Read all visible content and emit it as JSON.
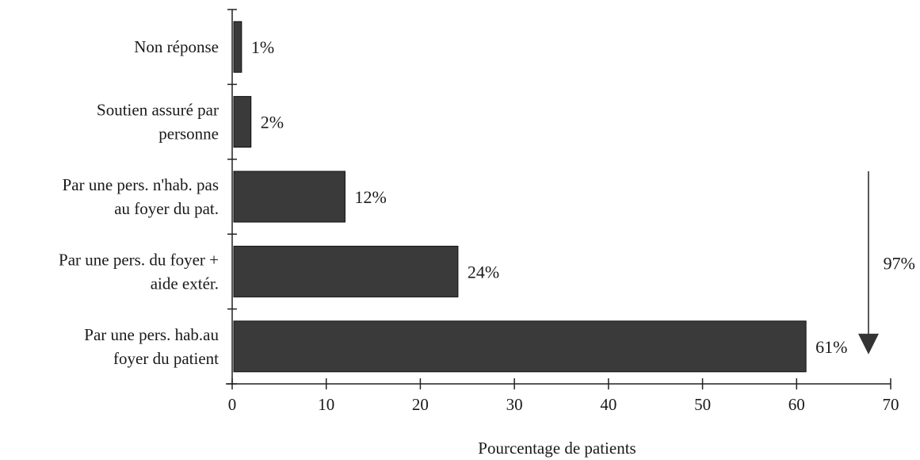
{
  "chart_data": {
    "type": "bar",
    "orientation": "horizontal",
    "categories": [
      [
        "Non réponse"
      ],
      [
        "Soutien assuré par",
        "personne"
      ],
      [
        "Par une pers. n'hab. pas",
        "au foyer du pat."
      ],
      [
        "Par une pers. du foyer +",
        "aide extér."
      ],
      [
        "Par une pers. hab.au",
        "foyer du patient"
      ]
    ],
    "values": [
      1,
      2,
      12,
      24,
      61
    ],
    "value_labels": [
      "1%",
      "2%",
      "12%",
      "24%",
      "61%"
    ],
    "xlabel": "Pourcentage de patients",
    "xlim": [
      0,
      70
    ],
    "xticks": [
      0,
      10,
      20,
      30,
      40,
      50,
      60,
      70
    ],
    "bracket": {
      "label": "97%",
      "from_category": 2,
      "to_category": 4
    },
    "colors": {
      "bar": "#3a3a3a",
      "axis": "#222222"
    }
  }
}
